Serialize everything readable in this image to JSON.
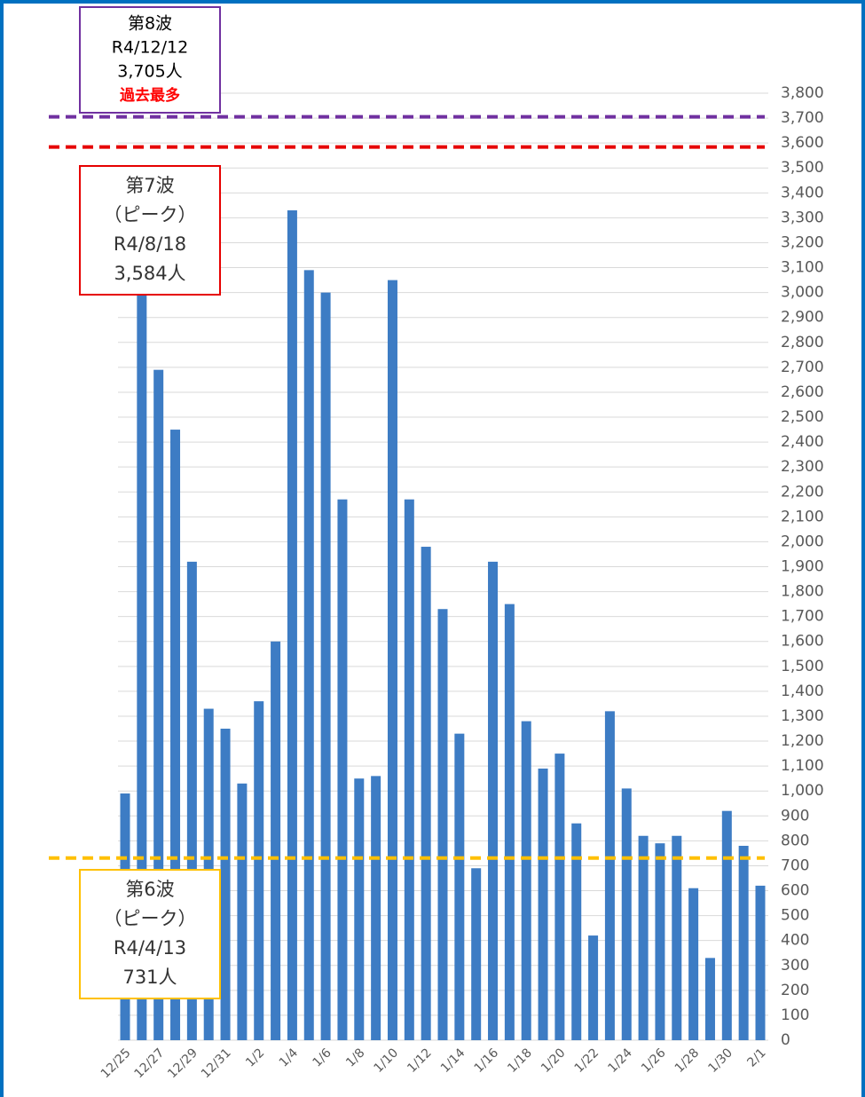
{
  "chart_data": {
    "type": "bar",
    "categories": [
      "12/25",
      null,
      "12/27",
      null,
      "12/29",
      null,
      "12/31",
      null,
      "1/2",
      null,
      "1/4",
      null,
      "1/6",
      null,
      "1/8",
      null,
      "1/10",
      null,
      "1/12",
      null,
      "1/14",
      null,
      "1/16",
      null,
      "1/18",
      null,
      "1/20",
      null,
      "1/22",
      null,
      "1/24",
      null,
      "1/26",
      null,
      "1/28",
      null,
      "1/30",
      null,
      "2/1"
    ],
    "values": [
      990,
      3240,
      2690,
      2450,
      1920,
      1330,
      1250,
      1030,
      1360,
      1600,
      3330,
      3090,
      3000,
      2170,
      1050,
      1060,
      3050,
      2170,
      1980,
      1730,
      1230,
      690,
      1920,
      1750,
      1280,
      1090,
      1150,
      870,
      420,
      1320,
      1010,
      820,
      790,
      820,
      610,
      330,
      920,
      780,
      620
    ],
    "color": "#3d7cc4",
    "ylim": [
      0,
      3800
    ],
    "yticks": [
      0,
      100,
      200,
      300,
      400,
      500,
      600,
      700,
      800,
      900,
      {
        "value": 1000,
        "label": "1,000"
      },
      {
        "value": 1100,
        "label": "1,100"
      },
      {
        "value": 1200,
        "label": "1,200"
      },
      {
        "value": 1300,
        "label": "1,300"
      },
      {
        "value": 1400,
        "label": "1,400"
      },
      {
        "value": 1500,
        "label": "1,500"
      },
      {
        "value": 1600,
        "label": "1,600"
      },
      {
        "value": 1700,
        "label": "1,700"
      },
      {
        "value": 1800,
        "label": "1,800"
      },
      {
        "value": 1900,
        "label": "1,900"
      },
      {
        "value": 2000,
        "label": "2,000"
      },
      {
        "value": 2100,
        "label": "2,100"
      },
      {
        "value": 2200,
        "label": "2,200"
      },
      {
        "value": 2300,
        "label": "2,300"
      },
      {
        "value": 2400,
        "label": "2,400"
      },
      {
        "value": 2500,
        "label": "2,500"
      },
      {
        "value": 2600,
        "label": "2,600"
      },
      {
        "value": 2700,
        "label": "2,700"
      },
      {
        "value": 2800,
        "label": "2,800"
      },
      {
        "value": 2900,
        "label": "2,900"
      },
      {
        "value": 3000,
        "label": "3,000"
      },
      {
        "value": 3100,
        "label": "3,100"
      },
      {
        "value": 3200,
        "label": "3,200"
      },
      {
        "value": 3300,
        "label": "3,300"
      },
      {
        "value": 3400,
        "label": "3,400"
      },
      {
        "value": 3500,
        "label": "3,500"
      },
      {
        "value": 3600,
        "label": "3,600"
      },
      {
        "value": 3700,
        "label": "3,700"
      },
      {
        "value": 3800,
        "label": "3,800"
      }
    ],
    "grid": true,
    "reference_lines": [
      {
        "value": 3705,
        "color": "#7030a0",
        "lines": [
          "第8波",
          "R4/12/12",
          "3,705人"
        ],
        "note": "過去最多",
        "note_color": "#ff0000"
      },
      {
        "value": 3584,
        "color": "#e60000",
        "lines": [
          "第7波",
          "（ピーク）",
          "R4/8/18",
          "3,584人"
        ]
      },
      {
        "value": 731,
        "color": "#ffc000",
        "lines": [
          "第6波",
          "（ピーク）",
          "R4/4/13",
          "731人"
        ]
      }
    ]
  }
}
